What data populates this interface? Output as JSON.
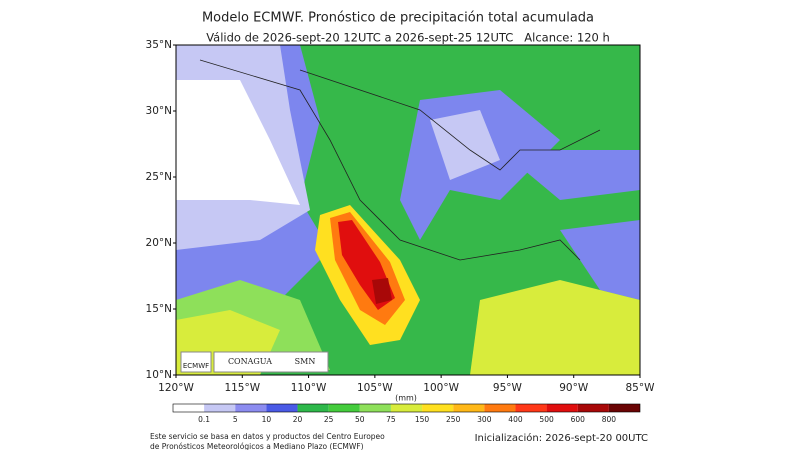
{
  "title": "Modelo ECMWF. Pronóstico de precipitación total acumulada",
  "subtitle": "Válido de 2026-sept-20 12UTC a 2026-sept-25 12UTC   Alcance: 120 h",
  "map": {
    "lat_labels": [
      "35°N",
      "30°N",
      "25°N",
      "20°N",
      "15°N",
      "10°N"
    ],
    "lon_labels": [
      "120°W",
      "115°W",
      "110°W",
      "105°W",
      "100°W",
      "95°W",
      "90°W",
      "85°W"
    ]
  },
  "logos": {
    "ecmwf": "ECMWF",
    "conagua": "CONAGUA",
    "smn": "SMN"
  },
  "colorbar": {
    "unit": "(mm)",
    "levels": [
      "0.1",
      "5",
      "10",
      "20",
      "25",
      "50",
      "75",
      "150",
      "250",
      "300",
      "400",
      "500",
      "600",
      "800"
    ],
    "colors": [
      "#ffffff",
      "#c6c8f4",
      "#8c8cf0",
      "#4a5ae6",
      "#2eb84a",
      "#44cc3c",
      "#8ee05a",
      "#d8ec3c",
      "#ffe020",
      "#ffb818",
      "#ff7a10",
      "#ff3818",
      "#e00e0e",
      "#a80808",
      "#6a0404"
    ]
  },
  "footer": {
    "note": [
      "Este servicio se basa en datos y productos del Centro Europeo",
      "de Pronósticos Meteorológicos a Mediano Plazo (ECMWF)"
    ],
    "init": "Inicialización: 2026-sept-20 00UTC"
  }
}
